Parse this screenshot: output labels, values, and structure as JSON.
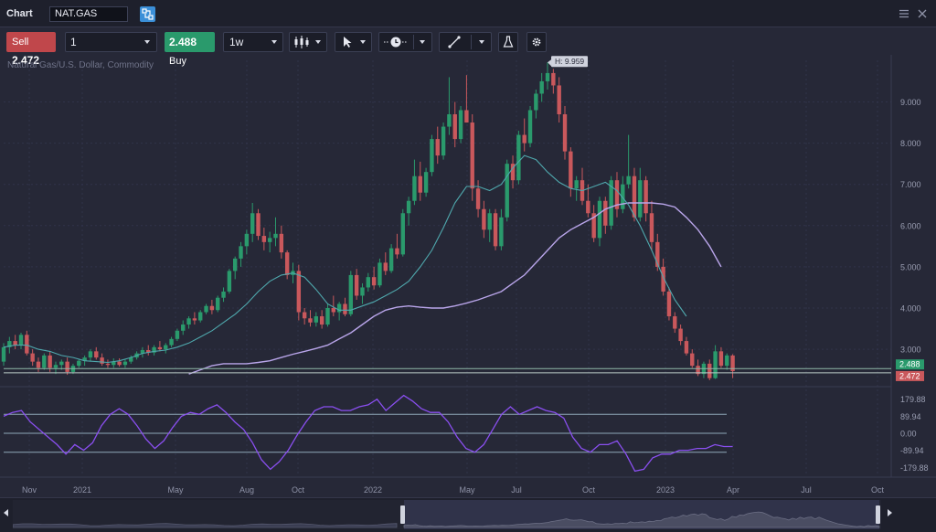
{
  "window": {
    "title": "Chart",
    "symbol": "NAT.GAS"
  },
  "toolbar": {
    "sell_label": "Sell",
    "sell_price": "2.472",
    "quantity": "1",
    "buy_price": "2.488",
    "buy_label": "Buy",
    "interval": "1w"
  },
  "instrument_desc": "Natural Gas/U.S. Dollar, Commodity",
  "colors": {
    "bull": "#2a9a6c",
    "bear": "#c9585c",
    "ma_fast": "#4fa8ad",
    "ma_slow": "#b9a5ea",
    "oscillator": "#8a4ff0",
    "background": "#262837"
  },
  "chart_data": {
    "type": "candlestick",
    "interval": "1w",
    "high_label": "H: 9.959",
    "price_axis": {
      "ticks": [
        3,
        4,
        5,
        6,
        7,
        8,
        9
      ],
      "tick_labels": [
        "3.000",
        "4.000",
        "5.000",
        "6.000",
        "7.000",
        "8.000",
        "9.000"
      ]
    },
    "time_axis": {
      "labels": [
        "Nov",
        "2021",
        "May",
        "Aug",
        "Oct",
        "2022",
        "May",
        "Jul",
        "Oct",
        "2023",
        "Apr",
        "Jul",
        "Oct"
      ]
    },
    "markers": [
      {
        "name": "buy",
        "value": 2.488,
        "label": "2.488",
        "color": "#2a9a6c"
      },
      {
        "name": "sell",
        "value": 2.472,
        "label": "2.472",
        "color": "#c9585c"
      }
    ],
    "candles": [
      [
        2.7,
        3.15,
        2.6,
        3.05
      ],
      [
        3.05,
        3.3,
        2.9,
        3.2
      ],
      [
        3.2,
        3.35,
        3.0,
        3.1
      ],
      [
        3.1,
        3.4,
        3.0,
        3.35
      ],
      [
        3.35,
        3.45,
        2.85,
        2.9
      ],
      [
        2.9,
        3.0,
        2.6,
        2.7
      ],
      [
        2.7,
        2.8,
        2.45,
        2.55
      ],
      [
        2.55,
        2.9,
        2.5,
        2.85
      ],
      [
        2.85,
        2.95,
        2.45,
        2.55
      ],
      [
        2.55,
        2.7,
        2.4,
        2.62
      ],
      [
        2.62,
        2.75,
        2.5,
        2.7
      ],
      [
        2.7,
        2.8,
        2.38,
        2.45
      ],
      [
        2.45,
        2.65,
        2.4,
        2.6
      ],
      [
        2.6,
        2.75,
        2.55,
        2.72
      ],
      [
        2.72,
        2.85,
        2.6,
        2.8
      ],
      [
        2.8,
        3.0,
        2.7,
        2.95
      ],
      [
        2.95,
        3.05,
        2.75,
        2.8
      ],
      [
        2.8,
        2.9,
        2.6,
        2.65
      ],
      [
        2.65,
        2.75,
        2.55,
        2.62
      ],
      [
        2.62,
        2.78,
        2.55,
        2.7
      ],
      [
        2.7,
        2.78,
        2.58,
        2.62
      ],
      [
        2.62,
        2.75,
        2.55,
        2.7
      ],
      [
        2.7,
        2.85,
        2.65,
        2.8
      ],
      [
        2.8,
        2.95,
        2.75,
        2.9
      ],
      [
        2.9,
        3.05,
        2.8,
        2.98
      ],
      [
        2.98,
        3.1,
        2.85,
        2.92
      ],
      [
        2.92,
        3.1,
        2.85,
        3.05
      ],
      [
        3.05,
        3.2,
        2.95,
        3.0
      ],
      [
        3.0,
        3.15,
        2.9,
        3.1
      ],
      [
        3.1,
        3.3,
        3.05,
        3.25
      ],
      [
        3.25,
        3.5,
        3.2,
        3.45
      ],
      [
        3.45,
        3.7,
        3.35,
        3.6
      ],
      [
        3.6,
        3.8,
        3.5,
        3.75
      ],
      [
        3.75,
        3.9,
        3.6,
        3.7
      ],
      [
        3.7,
        3.95,
        3.65,
        3.9
      ],
      [
        3.9,
        4.1,
        3.85,
        4.05
      ],
      [
        4.05,
        4.2,
        3.85,
        3.95
      ],
      [
        3.95,
        4.3,
        3.9,
        4.25
      ],
      [
        4.25,
        4.5,
        4.15,
        4.4
      ],
      [
        4.4,
        4.95,
        4.35,
        4.9
      ],
      [
        4.9,
        5.25,
        4.7,
        5.2
      ],
      [
        5.2,
        5.6,
        5.0,
        5.5
      ],
      [
        5.5,
        5.9,
        5.3,
        5.8
      ],
      [
        5.8,
        6.55,
        5.6,
        6.3
      ],
      [
        6.3,
        6.4,
        5.65,
        5.75
      ],
      [
        5.75,
        5.95,
        5.4,
        5.6
      ],
      [
        5.6,
        5.85,
        5.35,
        5.7
      ],
      [
        5.7,
        6.2,
        5.5,
        5.8
      ],
      [
        5.8,
        6.0,
        5.2,
        5.35
      ],
      [
        5.35,
        5.4,
        4.7,
        4.8
      ],
      [
        4.8,
        5.1,
        4.6,
        4.9
      ],
      [
        4.9,
        5.05,
        3.7,
        3.9
      ],
      [
        3.9,
        4.0,
        3.6,
        3.75
      ],
      [
        3.75,
        3.95,
        3.55,
        3.65
      ],
      [
        3.65,
        3.9,
        3.55,
        3.8
      ],
      [
        3.8,
        3.95,
        3.5,
        3.6
      ],
      [
        3.6,
        4.1,
        3.55,
        4.0
      ],
      [
        4.0,
        4.3,
        3.8,
        3.9
      ],
      [
        3.9,
        4.15,
        3.7,
        4.1
      ],
      [
        4.1,
        4.25,
        3.8,
        3.85
      ],
      [
        3.85,
        4.9,
        3.8,
        4.8
      ],
      [
        4.8,
        4.95,
        4.2,
        4.3
      ],
      [
        4.3,
        4.6,
        4.1,
        4.5
      ],
      [
        4.5,
        4.85,
        4.4,
        4.75
      ],
      [
        4.75,
        5.0,
        4.45,
        4.55
      ],
      [
        4.55,
        5.2,
        4.5,
        5.1
      ],
      [
        5.1,
        5.35,
        4.8,
        4.9
      ],
      [
        4.9,
        5.55,
        4.85,
        5.45
      ],
      [
        5.45,
        5.8,
        5.2,
        5.3
      ],
      [
        5.3,
        6.4,
        5.25,
        6.3
      ],
      [
        6.3,
        6.7,
        6.0,
        6.6
      ],
      [
        6.6,
        7.6,
        6.5,
        7.2
      ],
      [
        7.2,
        7.55,
        6.6,
        6.8
      ],
      [
        6.8,
        7.4,
        6.7,
        7.3
      ],
      [
        7.3,
        8.2,
        7.2,
        8.1
      ],
      [
        8.1,
        8.4,
        7.5,
        7.7
      ],
      [
        7.7,
        8.5,
        7.6,
        8.4
      ],
      [
        8.4,
        9.6,
        8.2,
        8.7
      ],
      [
        8.7,
        9.0,
        7.9,
        8.1
      ],
      [
        8.1,
        8.9,
        8.0,
        8.8
      ],
      [
        8.8,
        9.65,
        8.5,
        8.5
      ],
      [
        8.5,
        8.7,
        6.6,
        6.9
      ],
      [
        6.9,
        7.1,
        6.2,
        6.4
      ],
      [
        6.4,
        6.6,
        5.7,
        5.9
      ],
      [
        5.9,
        6.4,
        5.6,
        6.3
      ],
      [
        6.3,
        6.4,
        5.4,
        5.5
      ],
      [
        5.5,
        6.4,
        5.4,
        6.2
      ],
      [
        6.2,
        7.6,
        6.1,
        7.5
      ],
      [
        7.5,
        7.7,
        6.9,
        7.1
      ],
      [
        7.1,
        8.3,
        7.0,
        8.2
      ],
      [
        8.2,
        8.6,
        7.8,
        8.0
      ],
      [
        8.0,
        8.9,
        7.9,
        8.8
      ],
      [
        8.8,
        9.3,
        8.6,
        9.2
      ],
      [
        9.2,
        9.7,
        9.0,
        9.5
      ],
      [
        9.5,
        9.959,
        9.3,
        9.7
      ],
      [
        9.7,
        9.8,
        9.2,
        9.4
      ],
      [
        9.4,
        9.6,
        8.5,
        8.7
      ],
      [
        8.7,
        8.9,
        7.6,
        7.8
      ],
      [
        7.8,
        7.9,
        6.7,
        6.9
      ],
      [
        6.9,
        7.2,
        6.6,
        7.1
      ],
      [
        7.1,
        7.4,
        6.5,
        6.6
      ],
      [
        6.6,
        7.0,
        6.2,
        6.3
      ],
      [
        6.3,
        6.5,
        5.6,
        5.7
      ],
      [
        5.7,
        6.7,
        5.5,
        6.6
      ],
      [
        6.6,
        6.7,
        5.8,
        6.0
      ],
      [
        6.0,
        7.2,
        5.9,
        7.1
      ],
      [
        7.1,
        7.3,
        6.2,
        6.4
      ],
      [
        6.4,
        7.2,
        6.3,
        7.0
      ],
      [
        7.0,
        8.2,
        6.9,
        7.2
      ],
      [
        7.2,
        7.4,
        6.1,
        6.2
      ],
      [
        6.2,
        7.4,
        6.1,
        7.1
      ],
      [
        7.1,
        7.2,
        6.1,
        6.3
      ],
      [
        6.3,
        6.6,
        5.4,
        5.6
      ],
      [
        5.6,
        5.8,
        4.9,
        5.0
      ],
      [
        5.0,
        5.2,
        4.3,
        4.4
      ],
      [
        4.4,
        4.5,
        3.7,
        3.8
      ],
      [
        3.8,
        3.9,
        3.4,
        3.5
      ],
      [
        3.5,
        3.6,
        3.1,
        3.2
      ],
      [
        3.2,
        3.3,
        2.85,
        2.9
      ],
      [
        2.9,
        3.0,
        2.55,
        2.6
      ],
      [
        2.6,
        2.75,
        2.35,
        2.4
      ],
      [
        2.4,
        2.7,
        2.3,
        2.65
      ],
      [
        2.65,
        2.75,
        2.25,
        2.3
      ],
      [
        2.3,
        3.1,
        2.28,
        2.95
      ],
      [
        2.95,
        3.05,
        2.55,
        2.6
      ],
      [
        2.6,
        2.9,
        2.5,
        2.85
      ],
      [
        2.85,
        2.88,
        2.3,
        2.47
      ]
    ],
    "ma_fast": [
      3.05,
      3.1,
      3.1,
      3.0,
      2.95,
      2.85,
      2.8,
      2.72,
      2.7,
      2.68,
      2.72,
      2.8,
      2.9,
      2.95,
      2.98,
      3.05,
      3.15,
      3.3,
      3.45,
      3.65,
      3.85,
      4.1,
      4.4,
      4.65,
      4.8,
      4.85,
      4.75,
      4.45,
      4.1,
      3.95,
      3.95,
      4.05,
      4.15,
      4.3,
      4.45,
      4.65,
      5.0,
      5.4,
      5.95,
      6.55,
      6.95,
      6.95,
      6.85,
      7.0,
      7.4,
      7.7,
      7.6,
      7.3,
      7.05,
      6.9,
      6.85,
      6.95,
      7.05,
      6.85,
      6.5,
      6.0,
      5.4,
      4.75,
      4.2,
      3.8
    ],
    "ma_slow": [
      2.4,
      2.5,
      2.6,
      2.65,
      2.65,
      2.65,
      2.68,
      2.72,
      2.8,
      2.88,
      2.95,
      3.02,
      3.1,
      3.25,
      3.4,
      3.6,
      3.8,
      3.95,
      4.02,
      4.05,
      4.02,
      4.0,
      4.0,
      4.05,
      4.12,
      4.2,
      4.3,
      4.4,
      4.6,
      4.8,
      5.1,
      5.4,
      5.7,
      5.9,
      6.05,
      6.2,
      6.4,
      6.5,
      6.55,
      6.55,
      6.55,
      6.52,
      6.45,
      6.2,
      5.9,
      5.5,
      5.0
    ],
    "oscillator": {
      "ticks": [
        179.88,
        89.94,
        0.0,
        -89.94,
        -179.88
      ],
      "tick_labels": [
        "179.88",
        "89.94",
        "0.00",
        "-89.94",
        "-179.88"
      ],
      "levels": [
        100,
        0,
        -100
      ],
      "values": [
        90,
        110,
        120,
        60,
        20,
        -20,
        -60,
        -110,
        -60,
        -90,
        -50,
        40,
        100,
        130,
        100,
        40,
        -30,
        -80,
        -40,
        30,
        90,
        110,
        100,
        130,
        150,
        110,
        60,
        20,
        -50,
        -140,
        -190,
        -150,
        -90,
        -10,
        60,
        120,
        140,
        140,
        120,
        120,
        140,
        150,
        180,
        120,
        160,
        200,
        170,
        130,
        110,
        110,
        60,
        -20,
        -80,
        -100,
        -60,
        20,
        100,
        140,
        100,
        120,
        140,
        120,
        110,
        80,
        -20,
        -80,
        -100,
        -60,
        -60,
        -40,
        -110,
        -200,
        -190,
        -130,
        -110,
        -110,
        -90,
        -90,
        -80,
        -80,
        -60,
        -70,
        -70
      ]
    }
  }
}
